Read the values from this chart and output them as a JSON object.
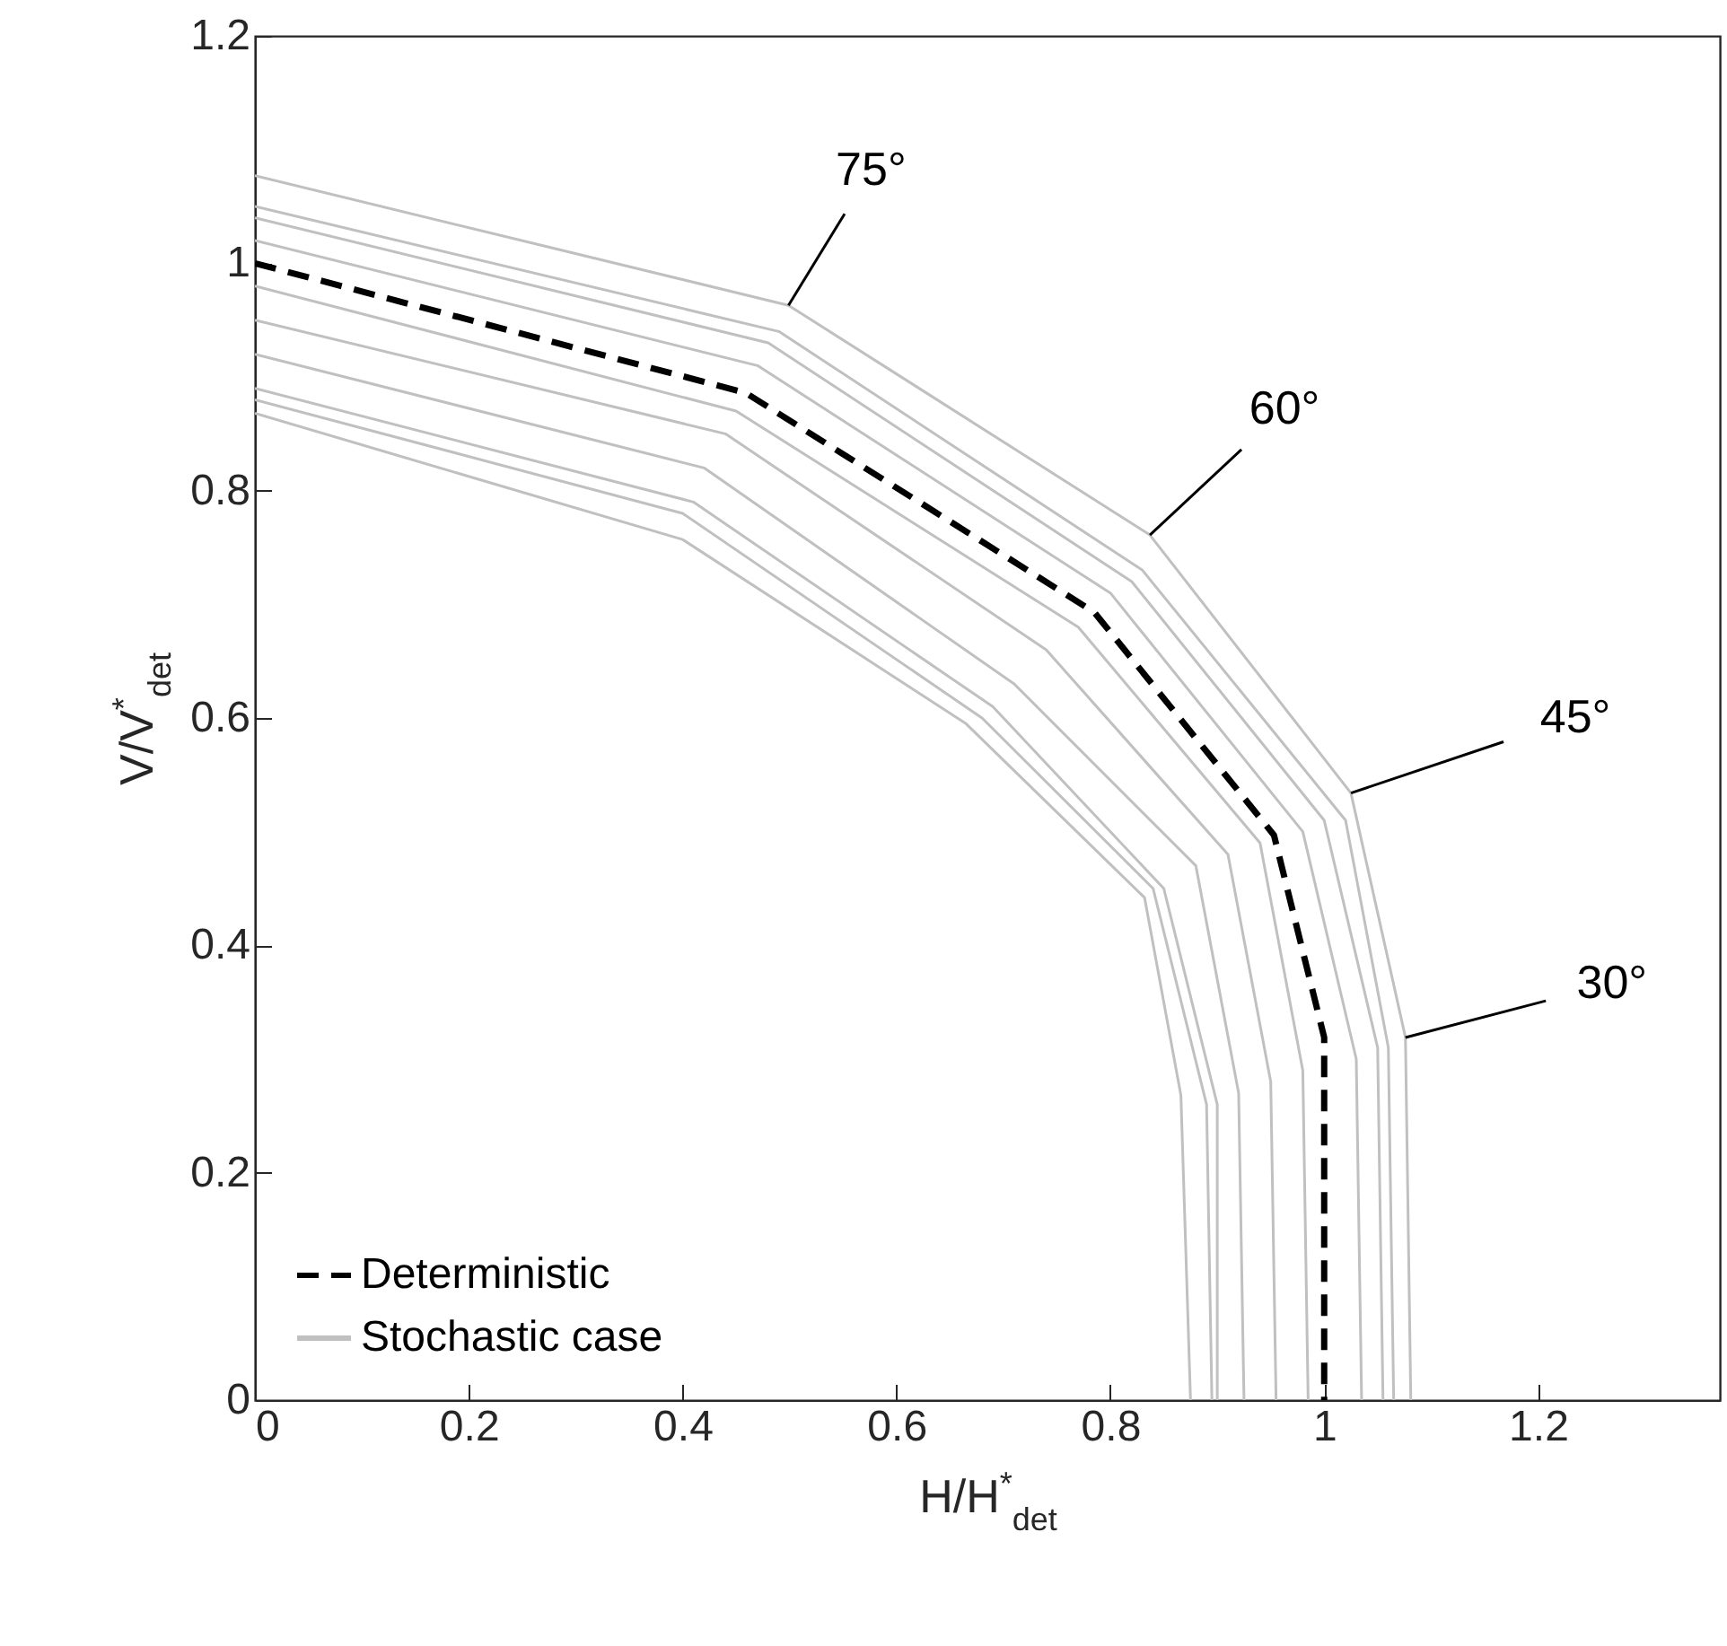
{
  "chart_data": {
    "type": "line",
    "xlabel": "H/H$^{*}$$_{det}$",
    "ylabel": "V/V$^{*}$$_{det}$",
    "xlim": [
      0,
      1.37
    ],
    "xticks": [
      0,
      0.2,
      0.4,
      0.6,
      0.8,
      1,
      1.2
    ],
    "ylim": [
      0,
      1.2
    ],
    "yticks": [
      0,
      0.2,
      0.4,
      0.6,
      0.8,
      1,
      1.2
    ],
    "grid": false,
    "legend": "bottom left",
    "marker": "none",
    "series": [
      {
        "name": "Deterministic",
        "color": "#000000",
        "line_style": "dashed",
        "x": [
          0,
          0.459,
          0.785,
          0.953,
          1.0,
          1.0
        ],
        "values": [
          1.0,
          0.886,
          0.693,
          0.497,
          0.319,
          0
        ]
      },
      {
        "name": "Stochastic case",
        "color": "#c0c0c0",
        "line_style": "solid",
        "x": [
          0,
          0.499,
          0.837,
          1.025,
          1.076,
          1.081
        ],
        "values": [
          1.077,
          0.963,
          0.761,
          0.534,
          0.319,
          0
        ]
      },
      {
        "color": "#c0c0c0",
        "line_style": "solid",
        "x": [
          0,
          0.49,
          0.83,
          1.02,
          1.06,
          1.065
        ],
        "values": [
          1.05,
          0.94,
          0.73,
          0.51,
          0.31,
          0
        ]
      },
      {
        "color": "#c0c0c0",
        "line_style": "solid",
        "x": [
          0,
          0.48,
          0.82,
          1.0,
          1.05,
          1.055
        ],
        "values": [
          1.04,
          0.93,
          0.72,
          0.51,
          0.31,
          0
        ]
      },
      {
        "color": "#c0c0c0",
        "line_style": "solid",
        "x": [
          0,
          0.47,
          0.8,
          0.98,
          1.03,
          1.035
        ],
        "values": [
          1.02,
          0.91,
          0.71,
          0.5,
          0.3,
          0
        ]
      },
      {
        "color": "#c0c0c0",
        "line_style": "solid",
        "x": [
          0,
          0.45,
          0.77,
          0.94,
          0.98,
          0.985
        ],
        "values": [
          0.98,
          0.87,
          0.68,
          0.49,
          0.29,
          0
        ]
      },
      {
        "color": "#c0c0c0",
        "line_style": "solid",
        "x": [
          0,
          0.44,
          0.74,
          0.91,
          0.95,
          0.955
        ],
        "values": [
          0.95,
          0.85,
          0.66,
          0.48,
          0.28,
          0
        ]
      },
      {
        "color": "#c0c0c0",
        "line_style": "solid",
        "x": [
          0,
          0.42,
          0.71,
          0.88,
          0.92,
          0.925
        ],
        "values": [
          0.92,
          0.82,
          0.63,
          0.47,
          0.27,
          0
        ]
      },
      {
        "color": "#c0c0c0",
        "line_style": "solid",
        "x": [
          0,
          0.41,
          0.69,
          0.85,
          0.9,
          0.9
        ],
        "values": [
          0.89,
          0.79,
          0.61,
          0.45,
          0.26,
          0
        ]
      },
      {
        "color": "#c0c0c0",
        "line_style": "solid",
        "x": [
          0,
          0.4,
          0.68,
          0.84,
          0.89,
          0.895
        ],
        "values": [
          0.88,
          0.78,
          0.6,
          0.45,
          0.26,
          0
        ]
      },
      {
        "color": "#c0c0c0",
        "line_style": "solid",
        "x": [
          0,
          0.4,
          0.665,
          0.832,
          0.866,
          0.875
        ],
        "values": [
          0.868,
          0.757,
          0.595,
          0.442,
          0.268,
          0
        ]
      }
    ],
    "annotations": [
      {
        "text": "75°",
        "x": 0.499,
        "y": 0.963
      },
      {
        "text": "60°",
        "x": 0.837,
        "y": 0.761
      },
      {
        "text": "45°",
        "x": 1.025,
        "y": 0.534
      },
      {
        "text": "30°",
        "x": 1.076,
        "y": 0.319
      }
    ]
  }
}
